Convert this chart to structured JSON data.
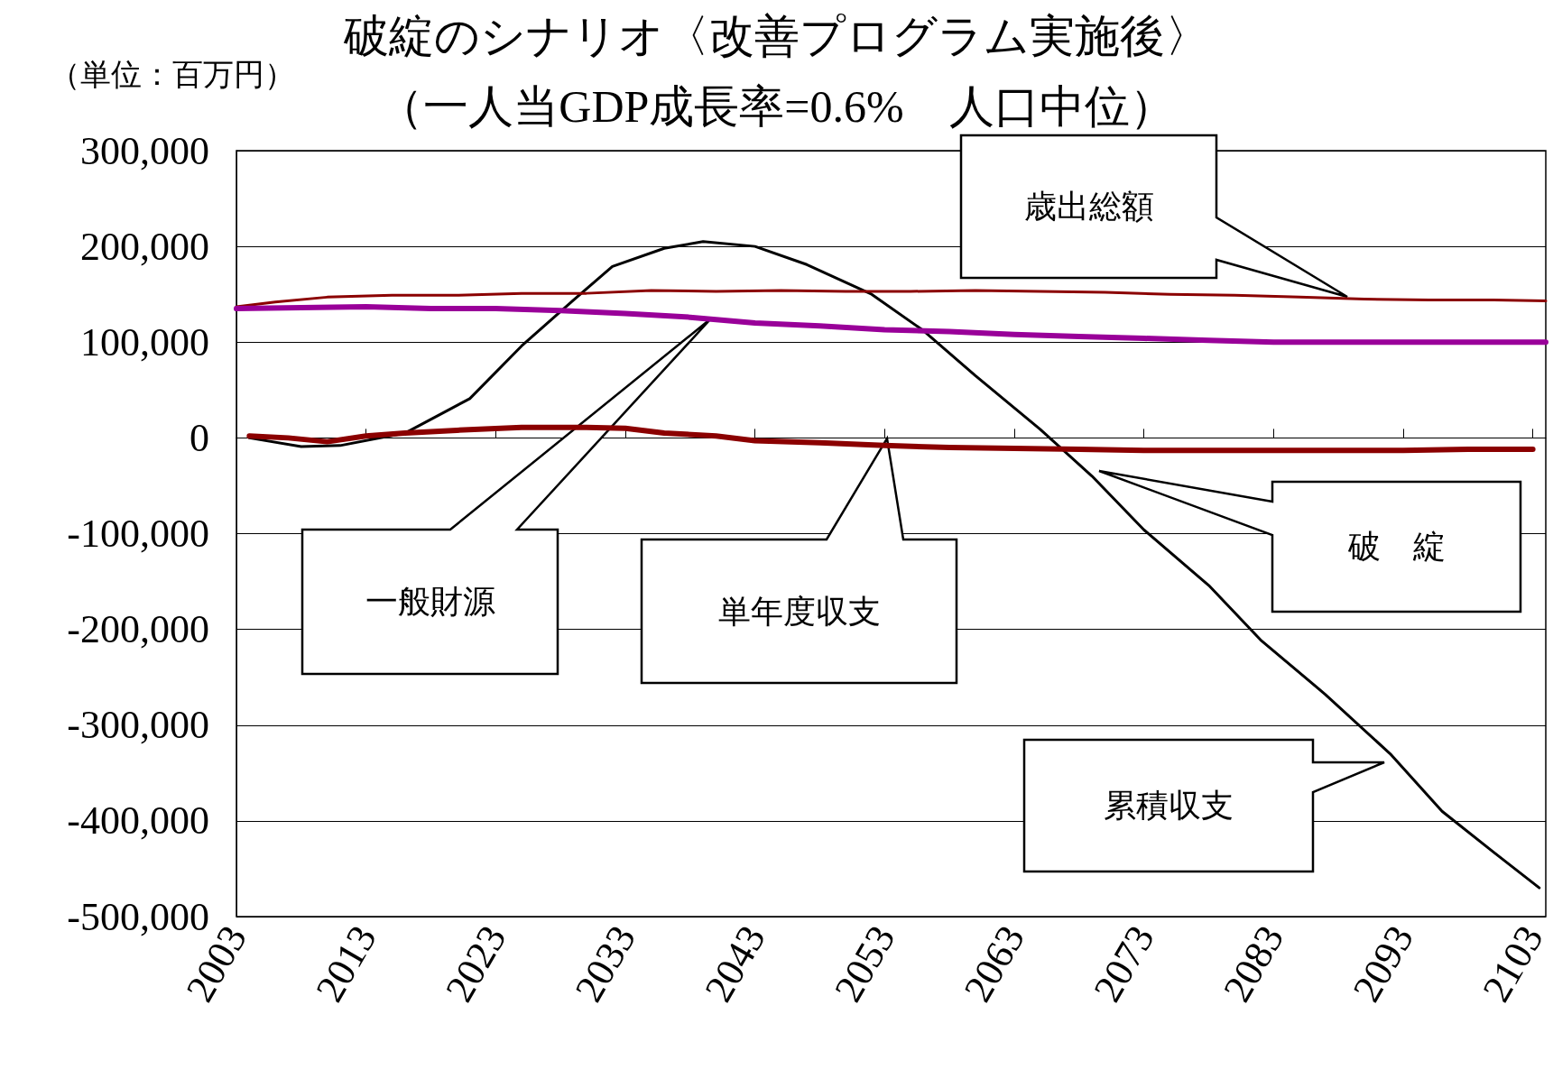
{
  "chart_data": {
    "type": "line",
    "title": "破綻のシナリオ〈改善プログラム実施後〉",
    "subtitle": "（一人当GDP成長率=0.6%　人口中位）",
    "ylabel": "（単位：百万円）",
    "xlim": [
      2003,
      2104
    ],
    "xticks": [
      2003,
      2013,
      2023,
      2033,
      2043,
      2053,
      2063,
      2073,
      2083,
      2093,
      2103
    ],
    "ylim": [
      -500000,
      300000
    ],
    "yticks": [
      {
        "value": -500000,
        "label": "-500,000"
      },
      {
        "value": -400000,
        "label": "-400,000"
      },
      {
        "value": -300000,
        "label": "-300,000"
      },
      {
        "value": -200000,
        "label": "-200,000"
      },
      {
        "value": -100000,
        "label": "-100,000"
      },
      0,
      {
        "value": 100000,
        "label": "100,000"
      },
      {
        "value": 200000,
        "label": "200,000"
      },
      {
        "value": 300000,
        "label": "300,000"
      }
    ],
    "grid": "y",
    "marker": "none",
    "line_style": "solid",
    "series": [
      {
        "color": "#000000",
        "x": [
          2004,
          2008,
          2011,
          2016,
          2021,
          2025,
          2029,
          2032,
          2036,
          2039,
          2043,
          2047,
          2052,
          2056,
          2060,
          2065,
          2069,
          2073,
          2078,
          2082,
          2087,
          2092,
          2096,
          2100,
          2103.5
        ],
        "values": [
          0,
          -9000,
          -8000,
          5000,
          41000,
          96000,
          144000,
          179000,
          198000,
          205000,
          200000,
          181000,
          150000,
          112000,
          65000,
          9000,
          -40000,
          -96000,
          -154000,
          -211000,
          -268000,
          -330000,
          -390000,
          -433000,
          -470000
        ]
      },
      {
        "color": "#8b0000",
        "x": [
          2003,
          2006,
          2010,
          2015,
          2020,
          2025,
          2030,
          2035,
          2040,
          2045,
          2050,
          2055,
          2060,
          2065,
          2070,
          2075,
          2080,
          2085,
          2090,
          2095,
          2100,
          2104
        ],
        "values": [
          137000,
          142000,
          147000,
          149000,
          149000,
          151000,
          151000,
          154000,
          153000,
          154000,
          153000,
          153000,
          154000,
          153000,
          152000,
          150000,
          149000,
          147000,
          145000,
          144000,
          144000,
          143000
        ]
      },
      {
        "color": "#990099",
        "x": [
          2003,
          2008,
          2013,
          2018,
          2023,
          2028,
          2033,
          2038,
          2043,
          2048,
          2053,
          2058,
          2063,
          2068,
          2073,
          2078,
          2083,
          2088,
          2093,
          2098,
          2104
        ],
        "values": [
          135000,
          136000,
          137000,
          135000,
          135000,
          133000,
          130000,
          126000,
          120000,
          117000,
          113000,
          111000,
          108000,
          106000,
          104000,
          102000,
          100000,
          100000,
          100000,
          100000,
          100000
        ]
      },
      {
        "color": "#8b0000",
        "x": [
          2004,
          2007,
          2010,
          2013,
          2016,
          2020,
          2025,
          2030,
          2033,
          2036,
          2040,
          2043,
          2048,
          2053,
          2058,
          2063,
          2068,
          2073,
          2078,
          2083,
          2088,
          2093,
          2098,
          2103
        ],
        "values": [
          2000,
          0,
          -4000,
          2000,
          5000,
          8000,
          11000,
          11000,
          10000,
          5000,
          2000,
          -3000,
          -5000,
          -8000,
          -10000,
          -11000,
          -12000,
          -13000,
          -13000,
          -13000,
          -13000,
          -13000,
          -12000,
          -12000
        ]
      }
    ],
    "annotations": [
      "歳出総額",
      "一般財源",
      "単年度収支",
      "破　綻",
      "累積収支"
    ]
  }
}
